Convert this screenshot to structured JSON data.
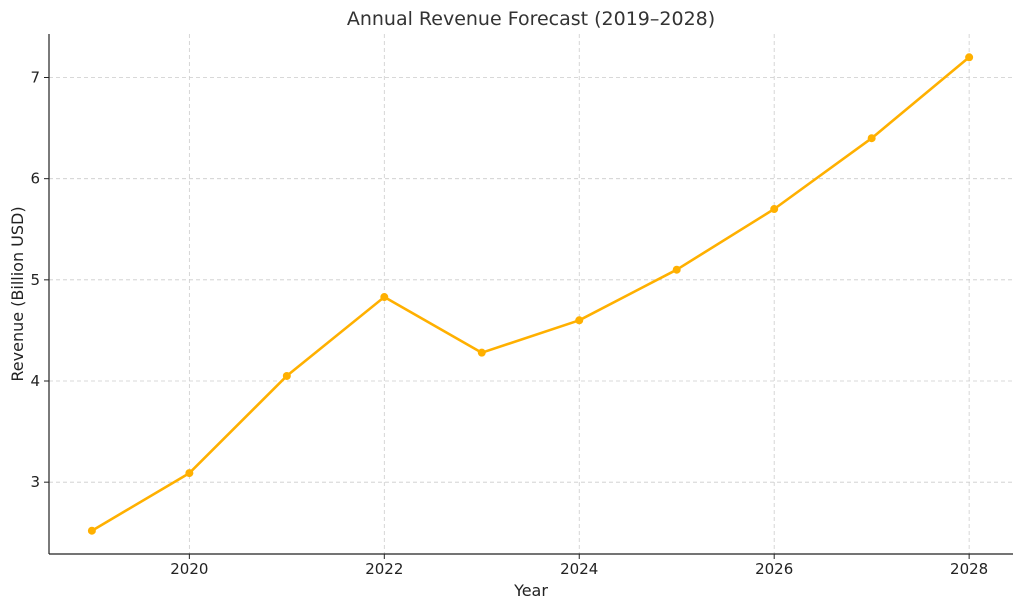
{
  "chart_data": {
    "type": "line",
    "title": "Annual Revenue Forecast (2019–2028)",
    "xlabel": "Year",
    "ylabel": "Revenue (Billion USD)",
    "x": [
      2019,
      2020,
      2021,
      2022,
      2023,
      2024,
      2025,
      2026,
      2027,
      2028
    ],
    "series": [
      {
        "values": [
          2.52,
          3.09,
          4.05,
          4.83,
          4.28,
          4.6,
          5.1,
          5.7,
          6.4,
          7.2
        ]
      }
    ],
    "xlim": [
      2018.56,
      2028.45
    ],
    "ylim": [
      2.29,
      7.43
    ],
    "xticks": [
      2020,
      2022,
      2024,
      2026,
      2028
    ],
    "yticks": [
      3,
      4,
      5,
      6,
      7
    ],
    "grid": true,
    "colors": {
      "line": "#FFB000",
      "grid": "#cccccc",
      "axis": "#222222"
    }
  }
}
